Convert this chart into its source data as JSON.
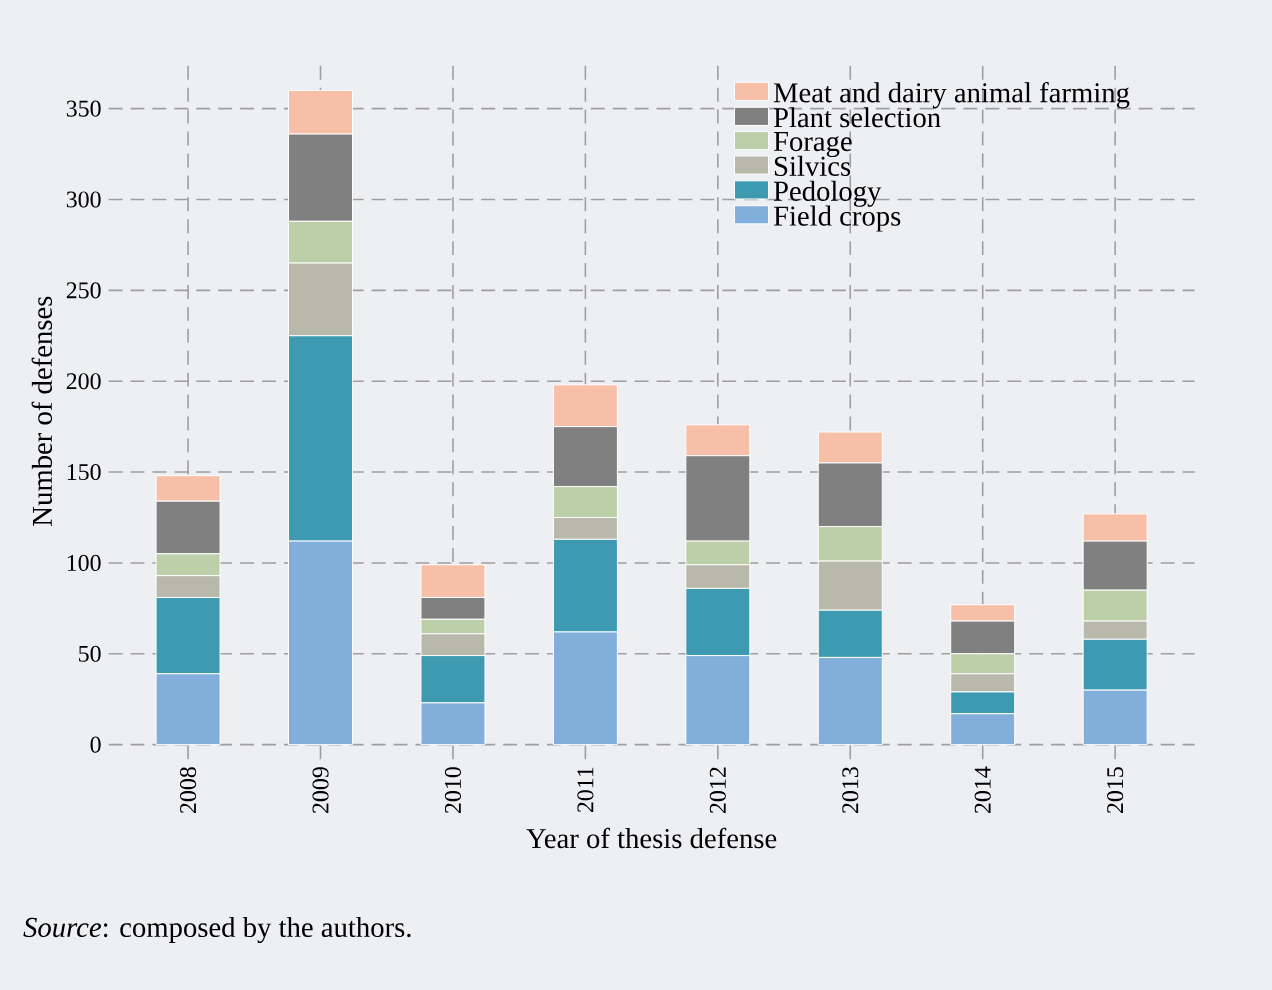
{
  "chart_data": {
    "type": "bar",
    "stacked": true,
    "xlabel": "Year of thesis defense",
    "ylabel": "Number of defenses",
    "categories": [
      "2008",
      "2009",
      "2010",
      "2011",
      "2012",
      "2013",
      "2014",
      "2015"
    ],
    "series": [
      {
        "name": "Field crops",
        "color": "#82aedc",
        "values": [
          39,
          112,
          23,
          62,
          49,
          48,
          17,
          30
        ]
      },
      {
        "name": "Pedology",
        "color": "#3d9ab0",
        "values": [
          42,
          113,
          26,
          51,
          37,
          26,
          12,
          28
        ]
      },
      {
        "name": "Silvics",
        "color": "#b8b8ab",
        "values": [
          12,
          40,
          12,
          12,
          13,
          27,
          10,
          10
        ]
      },
      {
        "name": "Forage",
        "color": "#bccfa8",
        "values": [
          12,
          23,
          8,
          17,
          13,
          19,
          11,
          17
        ]
      },
      {
        "name": "Plant selection",
        "color": "#808080",
        "values": [
          29,
          48,
          12,
          33,
          47,
          35,
          18,
          27
        ]
      },
      {
        "name": "Meat and dairy animal farming",
        "color": "#f7bfa8",
        "values": [
          14,
          24,
          18,
          23,
          17,
          17,
          9,
          15
        ]
      }
    ],
    "ylim": [
      -8,
      375
    ],
    "yticks": [
      0,
      50,
      100,
      150,
      200,
      250,
      300,
      350
    ],
    "grid": true,
    "legend": "top right",
    "annotations": [
      "*Source*: composed by the authors."
    ]
  }
}
